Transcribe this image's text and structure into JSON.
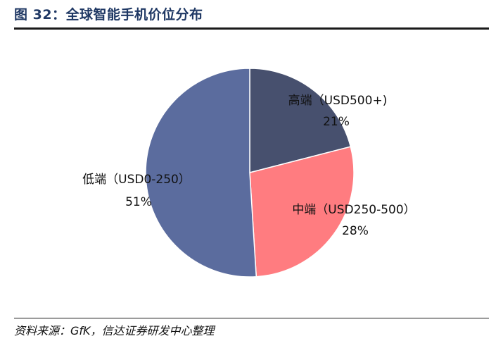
{
  "title": "图 32：全球智能手机价位分布",
  "source": "资料来源：GfK，信达证券研发中心整理",
  "colors": {
    "title": "#1F3864",
    "high": "#47506E",
    "mid": "#FF7C80",
    "low": "#5B6C9E"
  },
  "chart_data": {
    "type": "pie",
    "title": "",
    "start_angle_deg": 0,
    "direction": "clockwise",
    "slices": [
      {
        "label": "高端（USD500+)",
        "percent_label": "21%",
        "value": 21,
        "color": "#47506E"
      },
      {
        "label": "中端（USD250-500）",
        "percent_label": "28%",
        "value": 28,
        "color": "#FF7C80"
      },
      {
        "label": "低端（USD0-250）",
        "percent_label": "51%",
        "value": 51,
        "color": "#5B6C9E"
      }
    ]
  }
}
